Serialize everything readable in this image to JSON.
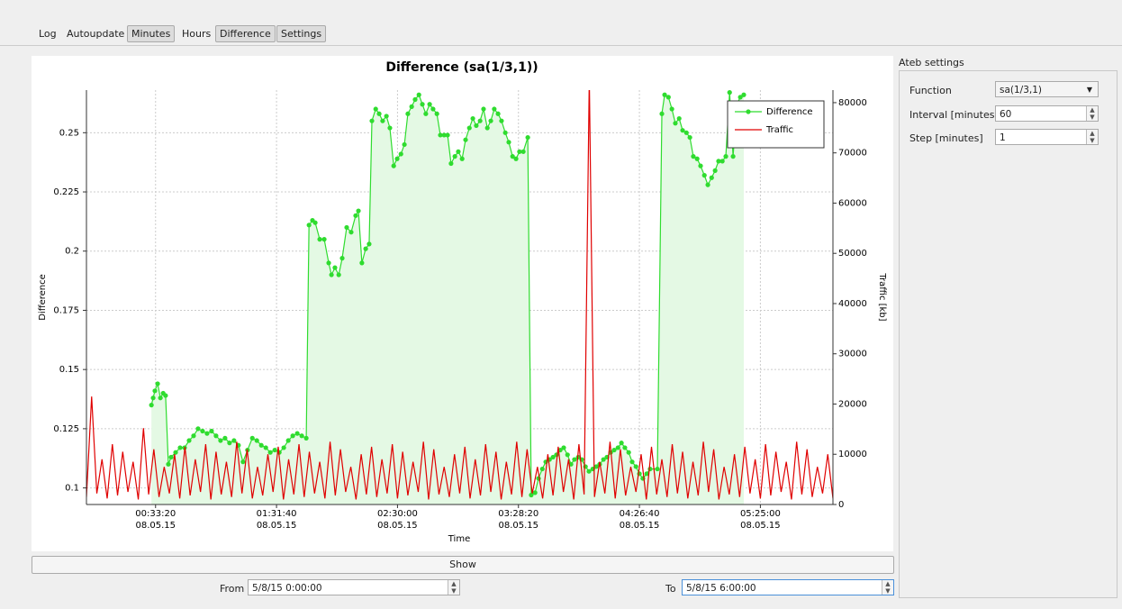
{
  "tabs": [
    "Log",
    "Autoupdate",
    "Minutes",
    "Hours",
    "Difference",
    "Settings"
  ],
  "chart_data": {
    "type": "line",
    "title": "Difference (sa(1/3,1))",
    "x_label": "Time",
    "y_label": "Difference",
    "y2_label": "Traffic [kb]",
    "xlim": [
      0,
      21600
    ],
    "xticks": [
      {
        "value": 2000,
        "label": "00:33:20"
      },
      {
        "value": 5500,
        "label": "01:31:40"
      },
      {
        "value": 9000,
        "label": "02:30:00"
      },
      {
        "value": 12500,
        "label": "03:28:20"
      },
      {
        "value": 16000,
        "label": "04:26:40"
      },
      {
        "value": 19500,
        "label": "05:25:00"
      }
    ],
    "x_date_labels": [
      "08.05.15",
      "08.05.15",
      "08.05.15",
      "08.05.15",
      "08.05.15",
      "08.05.15"
    ],
    "ylim": [
      0.093,
      0.268
    ],
    "yticks": [
      0.1,
      0.125,
      0.15,
      0.175,
      0.2,
      0.225,
      0.25
    ],
    "y2lim": [
      0,
      82500
    ],
    "y2ticks": [
      0,
      10000,
      20000,
      30000,
      40000,
      50000,
      60000,
      70000,
      80000
    ],
    "grid": true,
    "legend": "upper right",
    "series": [
      {
        "name": "Difference",
        "color": "#2fdc2f",
        "fill_color": "#e4f9e4",
        "markers": true,
        "x": [
          1880,
          1930,
          1980,
          2060,
          2140,
          2220,
          2290,
          2370,
          2450,
          2580,
          2710,
          2840,
          2970,
          3100,
          3230,
          3360,
          3490,
          3620,
          3750,
          3880,
          4010,
          4140,
          4270,
          4400,
          4530,
          4660,
          4800,
          4930,
          5060,
          5190,
          5320,
          5450,
          5580,
          5710,
          5840,
          5970,
          6100,
          6230,
          6360,
          6440,
          6540,
          6620,
          6750,
          6880,
          7010,
          7090,
          7190,
          7300,
          7400,
          7530,
          7660,
          7790,
          7870,
          7970,
          8080,
          8180,
          8260,
          8370,
          8470,
          8570,
          8680,
          8780,
          8890,
          8990,
          9100,
          9200,
          9300,
          9410,
          9510,
          9620,
          9720,
          9820,
          9930,
          10030,
          10140,
          10240,
          10350,
          10450,
          10550,
          10660,
          10760,
          10870,
          10970,
          11080,
          11180,
          11280,
          11390,
          11490,
          11600,
          11700,
          11800,
          11910,
          12010,
          12120,
          12220,
          12330,
          12430,
          12530,
          12640,
          12770,
          12870,
          12980,
          13080,
          13190,
          13290,
          13400,
          13500,
          13600,
          13710,
          13810,
          13920,
          14020,
          14120,
          14230,
          14330,
          14440,
          14540,
          14650,
          14750,
          14850,
          14960,
          15060,
          15170,
          15270,
          15380,
          15480,
          15580,
          15690,
          15790,
          15900,
          16000,
          16100,
          16210,
          16310,
          16520,
          16650,
          16730,
          16840,
          16940,
          17040,
          17150,
          17250,
          17360,
          17460,
          17560,
          17670,
          17770,
          17880,
          17980,
          18090,
          18190,
          18290,
          18400,
          18500,
          18610,
          18710,
          18820,
          18920,
          19020
        ],
        "values": [
          0.135,
          0.138,
          0.141,
          0.144,
          0.138,
          0.14,
          0.139,
          0.11,
          0.113,
          0.115,
          0.117,
          0.117,
          0.12,
          0.122,
          0.125,
          0.124,
          0.123,
          0.124,
          0.122,
          0.12,
          0.121,
          0.119,
          0.12,
          0.118,
          0.111,
          0.116,
          0.121,
          0.12,
          0.118,
          0.117,
          0.115,
          0.116,
          0.115,
          0.117,
          0.12,
          0.122,
          0.123,
          0.122,
          0.121,
          0.211,
          0.213,
          0.212,
          0.205,
          0.205,
          0.195,
          0.19,
          0.193,
          0.19,
          0.197,
          0.21,
          0.208,
          0.215,
          0.217,
          0.195,
          0.201,
          0.203,
          0.255,
          0.26,
          0.258,
          0.255,
          0.257,
          0.252,
          0.236,
          0.239,
          0.241,
          0.245,
          0.258,
          0.261,
          0.264,
          0.266,
          0.262,
          0.258,
          0.262,
          0.26,
          0.258,
          0.249,
          0.249,
          0.249,
          0.237,
          0.24,
          0.242,
          0.239,
          0.247,
          0.252,
          0.256,
          0.253,
          0.255,
          0.26,
          0.252,
          0.255,
          0.26,
          0.258,
          0.255,
          0.25,
          0.246,
          0.24,
          0.239,
          0.242,
          0.242,
          0.248,
          0.097,
          0.098,
          0.104,
          0.108,
          0.111,
          0.112,
          0.113,
          0.114,
          0.116,
          0.117,
          0.114,
          0.11,
          0.112,
          0.113,
          0.112,
          0.109,
          0.107,
          0.108,
          0.109,
          0.11,
          0.112,
          0.113,
          0.115,
          0.116,
          0.117,
          0.119,
          0.117,
          0.115,
          0.111,
          0.109,
          0.106,
          0.104,
          0.106,
          0.108,
          0.108,
          0.258,
          0.266,
          0.265,
          0.26,
          0.254,
          0.256,
          0.251,
          0.25,
          0.248,
          0.24,
          0.239,
          0.236,
          0.232,
          0.228,
          0.231,
          0.234,
          0.238,
          0.238,
          0.24,
          0.267,
          0.24,
          0.262,
          0.265,
          0.266
        ]
      },
      {
        "name": "Traffic",
        "color": "#e00000",
        "axis": "y2",
        "x": [
          0,
          150,
          300,
          450,
          600,
          750,
          900,
          1050,
          1200,
          1350,
          1500,
          1650,
          1800,
          1950,
          2100,
          2250,
          2400,
          2550,
          2700,
          2850,
          3000,
          3150,
          3300,
          3450,
          3600,
          3750,
          3900,
          4050,
          4200,
          4350,
          4500,
          4650,
          4800,
          4950,
          5100,
          5250,
          5400,
          5550,
          5700,
          5850,
          6000,
          6150,
          6300,
          6450,
          6600,
          6750,
          6900,
          7050,
          7200,
          7350,
          7500,
          7650,
          7800,
          7950,
          8100,
          8250,
          8400,
          8550,
          8700,
          8850,
          9000,
          9150,
          9300,
          9450,
          9600,
          9750,
          9900,
          10050,
          10200,
          10350,
          10500,
          10650,
          10800,
          10950,
          11100,
          11250,
          11400,
          11550,
          11700,
          11850,
          12000,
          12150,
          12300,
          12450,
          12600,
          12750,
          12900,
          13050,
          13200,
          13350,
          13500,
          13650,
          13800,
          13950,
          14100,
          14250,
          14400,
          14550,
          14700,
          14850,
          15000,
          15150,
          15300,
          15450,
          15600,
          15750,
          15900,
          16050,
          16200,
          16350,
          16500,
          16650,
          16800,
          16950,
          17100,
          17250,
          17400,
          17550,
          17700,
          17850,
          18000,
          18150,
          18300,
          18450,
          18600,
          18750,
          18900,
          19050,
          19200,
          19350,
          19500,
          19650,
          19800,
          19950,
          20100,
          20250,
          20400,
          20550,
          20700,
          20850,
          21000,
          21150,
          21300,
          21450,
          21600
        ],
        "values": [
          1500,
          21500,
          2200,
          9000,
          1200,
          12000,
          1800,
          10500,
          2500,
          8500,
          1000,
          15200,
          2000,
          11000,
          1500,
          7500,
          2200,
          10000,
          1200,
          11500,
          1800,
          9000,
          2500,
          12000,
          1000,
          10500,
          2000,
          8500,
          1500,
          12500,
          2200,
          11000,
          1200,
          7500,
          1800,
          10000,
          2500,
          11500,
          1000,
          9000,
          2000,
          12000,
          1500,
          10500,
          2200,
          8500,
          1200,
          12500,
          1800,
          11000,
          2500,
          7500,
          1000,
          10000,
          2000,
          11500,
          1500,
          9000,
          2200,
          12000,
          1200,
          10500,
          1800,
          8500,
          2500,
          12500,
          1000,
          11000,
          2000,
          7500,
          1500,
          10000,
          2200,
          11500,
          1200,
          9000,
          1800,
          12000,
          2500,
          10500,
          1000,
          8500,
          2000,
          12500,
          1500,
          11000,
          2200,
          7500,
          1200,
          10000,
          1800,
          11500,
          2500,
          9000,
          1000,
          12000,
          2000,
          85000,
          1500,
          8500,
          2200,
          12500,
          1200,
          11000,
          1800,
          7500,
          2500,
          10000,
          1000,
          11500,
          2000,
          9000,
          1500,
          12000,
          2200,
          10500,
          1200,
          8500,
          1800,
          12500,
          2500,
          11000,
          1000,
          7500,
          2000,
          10000,
          1500,
          11500,
          2200,
          9000,
          1200,
          12000,
          1800,
          10500,
          2500,
          8500,
          1000,
          12500,
          2000,
          11000,
          1500,
          7500,
          2200,
          10000,
          1200
        ]
      }
    ]
  },
  "show_button": "Show",
  "range": {
    "from_label": "From",
    "from": "5/8/15 0:00:00",
    "to_label": "To",
    "to": "5/8/15 6:00:00"
  },
  "settings": {
    "title": "Ateb settings",
    "fields": [
      {
        "label": "Function",
        "value": "sa(1/3,1)"
      },
      {
        "label": "Interval [minutes]",
        "value": 60
      },
      {
        "label": "Step [minutes]",
        "value": 1
      }
    ]
  }
}
